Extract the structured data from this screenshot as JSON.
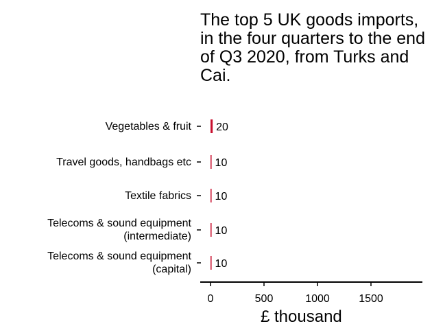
{
  "chart_data": {
    "type": "bar",
    "orientation": "horizontal",
    "title": "The top 5 UK goods imports, in the four quarters to the end of Q3 2020, from Turks and Cai.",
    "xlabel": "£ thousand",
    "ylabel": "",
    "categories": [
      "Vegetables & fruit",
      "Travel goods, handbags etc",
      "Textile fabrics",
      "Telecoms & sound equipment\n(intermediate)",
      "Telecoms & sound equipment\n(capital)"
    ],
    "values": [
      20,
      10,
      10,
      10,
      10
    ],
    "value_labels": [
      "20",
      "10",
      "10",
      "10",
      "10"
    ],
    "xlim": [
      0,
      1950
    ],
    "xticks": [
      0,
      500,
      1000,
      1500
    ],
    "xtick_labels": [
      "0",
      "500",
      "1000",
      "1500"
    ],
    "bar_color": "#c8102e",
    "grid": false,
    "legend": "none"
  }
}
